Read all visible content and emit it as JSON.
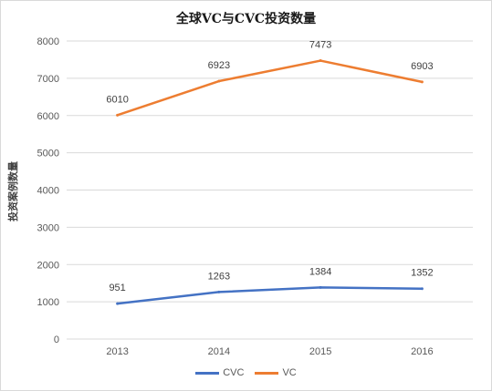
{
  "chart_data": {
    "type": "line",
    "title": "全球VC与CVC投资数量",
    "xlabel": "",
    "ylabel": "投资案例数量",
    "categories": [
      "2013",
      "2014",
      "2015",
      "2016"
    ],
    "ylim": [
      0,
      8000
    ],
    "yticks": [
      "0",
      "1000",
      "2000",
      "3000",
      "4000",
      "5000",
      "6000",
      "7000",
      "8000"
    ],
    "grid": true,
    "legend_position": "bottom",
    "series": [
      {
        "name": "CVC",
        "color": "#4472c4",
        "values": [
          951,
          1263,
          1384,
          1352
        ]
      },
      {
        "name": "VC",
        "color": "#ed7d31",
        "values": [
          6010,
          6923,
          7473,
          6903
        ]
      }
    ]
  }
}
